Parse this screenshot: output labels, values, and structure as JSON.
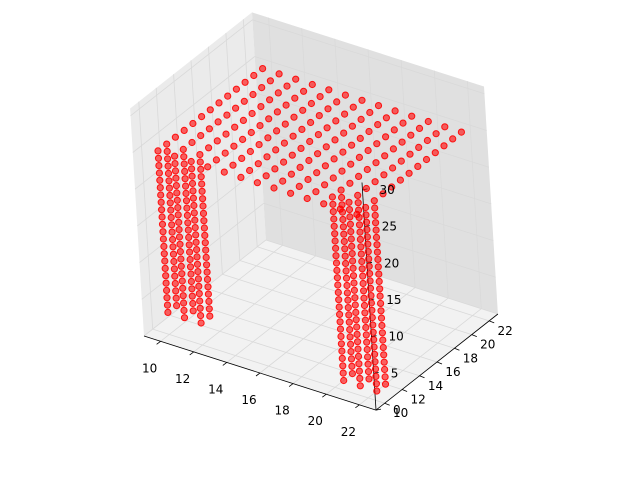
{
  "chart_data": {
    "type": "scatter",
    "projection": "3d",
    "title": "",
    "xlabel": "",
    "ylabel": "",
    "zlabel": "",
    "grid": true,
    "xlim": [
      9,
      23
    ],
    "ylim": [
      9,
      23
    ],
    "zlim": [
      0,
      31
    ],
    "x_ticks": [
      10,
      12,
      14,
      16,
      18,
      20,
      22
    ],
    "y_ticks": [
      10,
      12,
      14,
      16,
      18,
      20,
      22
    ],
    "z_ticks": [
      0,
      5,
      10,
      15,
      20,
      25,
      30
    ],
    "x_tick_labels": [
      "10",
      "12",
      "14",
      "16",
      "18",
      "20",
      "22"
    ],
    "y_tick_labels": [
      "10",
      "12",
      "14",
      "16",
      "18",
      "20",
      "22"
    ],
    "z_tick_labels": [
      "0",
      "5",
      "10",
      "15",
      "20",
      "25",
      "30"
    ],
    "marker_color": "#ff0000",
    "marker_alpha": 0.6,
    "plane": {
      "x_values": [
        10,
        11,
        12,
        13,
        14,
        15,
        16,
        17,
        18,
        19,
        20,
        21,
        22
      ],
      "y_values": [
        10,
        11,
        12,
        13,
        14,
        15,
        16,
        17,
        18,
        19,
        20,
        21,
        22
      ],
      "z": 25
    },
    "columns": [
      {
        "x": 10,
        "y": 10,
        "z_values": [
          3,
          4,
          5,
          6,
          7,
          8,
          9,
          10,
          11,
          12,
          13,
          14,
          15,
          16,
          17,
          18,
          19,
          20,
          21,
          22,
          23,
          24
        ]
      },
      {
        "x": 11,
        "y": 10,
        "z_values": [
          3,
          4,
          5,
          6,
          7,
          8,
          9,
          10,
          11,
          12,
          13,
          14,
          15,
          16,
          17,
          18,
          19,
          20,
          21,
          22,
          23,
          24
        ]
      },
      {
        "x": 12,
        "y": 10,
        "z_values": [
          3,
          4,
          5,
          6,
          7,
          8,
          9,
          10,
          11,
          12,
          13,
          14,
          15,
          16,
          17,
          18,
          19,
          20,
          21,
          22,
          23,
          24
        ]
      },
      {
        "x": 10,
        "y": 11,
        "z_values": [
          3,
          4,
          5,
          6,
          7,
          8,
          9,
          10,
          11,
          12,
          13,
          14,
          15,
          16,
          17,
          18,
          19,
          20,
          21,
          22,
          23,
          24
        ]
      },
      {
        "x": 11,
        "y": 11,
        "z_values": [
          3,
          4,
          5,
          6,
          7,
          8,
          9,
          10,
          11,
          12,
          13,
          14,
          15,
          16,
          17,
          18,
          19,
          20,
          21,
          22,
          23,
          24
        ]
      },
      {
        "x": 12,
        "y": 11,
        "z_values": [
          3,
          4,
          5,
          6,
          7,
          8,
          9,
          10,
          11,
          12,
          13,
          14,
          15,
          16,
          17,
          18,
          19,
          20,
          21,
          22,
          23,
          24
        ]
      },
      {
        "x": 20,
        "y": 11,
        "z_values": [
          0,
          1,
          2,
          3,
          4,
          5,
          6,
          7,
          8,
          9,
          10,
          11,
          12,
          13,
          14,
          15,
          16,
          17,
          18,
          19,
          20,
          21,
          22,
          23,
          24
        ]
      },
      {
        "x": 21,
        "y": 11,
        "z_values": [
          0,
          1,
          2,
          3,
          4,
          5,
          6,
          7,
          8,
          9,
          10,
          11,
          12,
          13,
          14,
          15,
          16,
          17,
          18,
          19,
          20,
          21,
          22,
          23,
          24
        ]
      },
      {
        "x": 22,
        "y": 11,
        "z_values": [
          0,
          1,
          2,
          3,
          4,
          5,
          6,
          7,
          8,
          9,
          10,
          11,
          12,
          13,
          14,
          15,
          16,
          17,
          18,
          19,
          20,
          21,
          22,
          23,
          24
        ]
      },
      {
        "x": 20,
        "y": 12,
        "z_values": [
          0,
          1,
          2,
          3,
          4,
          5,
          6,
          7,
          8,
          9,
          10,
          11,
          12,
          13,
          14,
          15,
          16,
          17,
          18,
          19,
          20,
          21,
          22,
          23,
          24
        ]
      },
      {
        "x": 21,
        "y": 12,
        "z_values": [
          0,
          1,
          2,
          3,
          4,
          5,
          6,
          7,
          8,
          9,
          10,
          11,
          12,
          13,
          14,
          15,
          16,
          17,
          18,
          19,
          20,
          21,
          22,
          23,
          24
        ]
      },
      {
        "x": 22,
        "y": 12,
        "z_values": [
          0,
          1,
          2,
          3,
          4,
          5,
          6,
          7,
          8,
          9,
          10,
          11,
          12,
          13,
          14,
          15,
          16,
          17,
          18,
          19,
          20,
          21,
          22,
          23,
          24
        ]
      }
    ]
  },
  "colors": {
    "pane_x": "#ebebeb",
    "pane_y": "#e0e0e0",
    "pane_z": "#f2f2f2",
    "grid": "#d9d9d9",
    "point_fill": "#ff0000",
    "point_edge": "#ff0000"
  }
}
